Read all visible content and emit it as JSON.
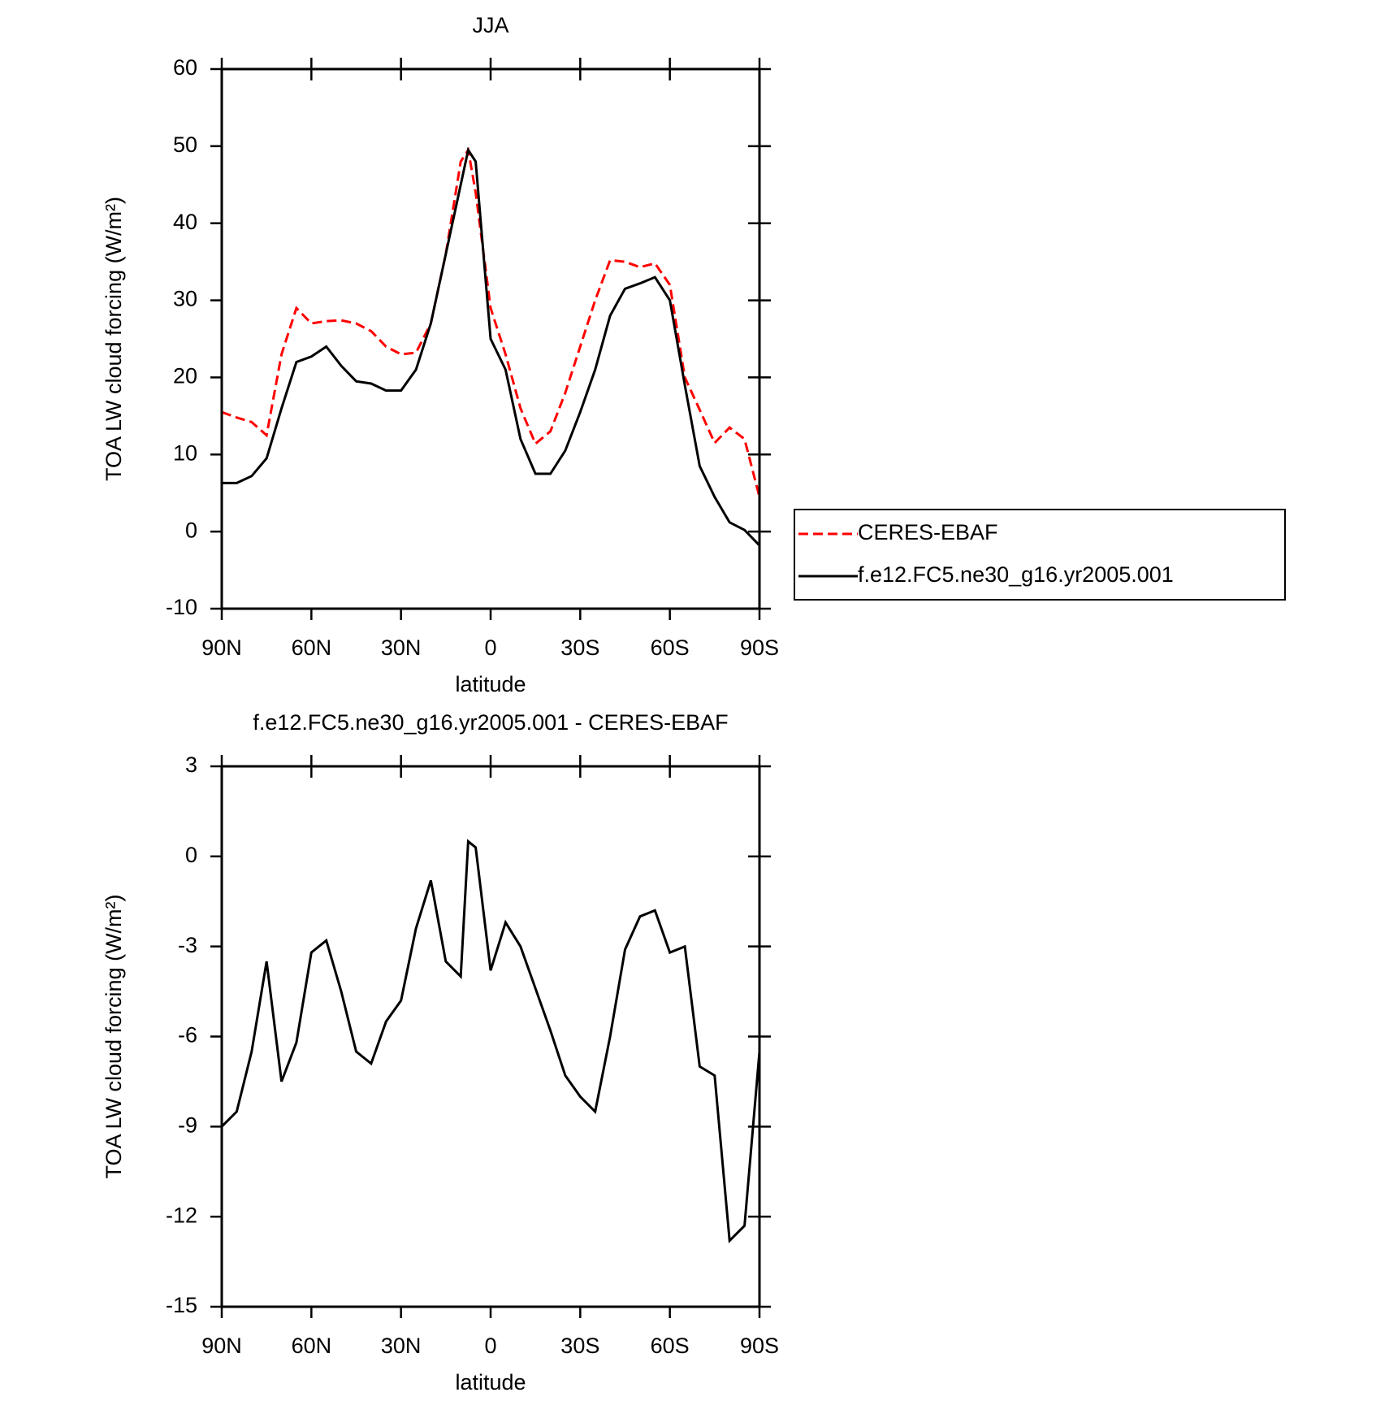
{
  "chart_data": [
    {
      "type": "line",
      "title": "JJA",
      "xlabel": "latitude",
      "ylabel": "TOA LW cloud forcing (W/m²)",
      "x": [
        90,
        85,
        80,
        75,
        70,
        65,
        60,
        55,
        50,
        45,
        40,
        35,
        30,
        25,
        20,
        15,
        10,
        7.5,
        5,
        0,
        -5,
        -10,
        -15,
        -20,
        -25,
        -30,
        -35,
        -40,
        -45,
        -50,
        -55,
        -60,
        -65,
        -70,
        -75,
        -80,
        -85,
        -90
      ],
      "series": [
        {
          "name": "CERES-EBAF",
          "color": "#ff0000",
          "linestyle": "dashed",
          "values": [
            15.5,
            14.8,
            14.2,
            12.5,
            23,
            29,
            27,
            27.3,
            27.4,
            27,
            26,
            24,
            23,
            23.2,
            27,
            36,
            48,
            49.5,
            44,
            29,
            23,
            16,
            11.4,
            13,
            18,
            24,
            30,
            35.2,
            35,
            34.3,
            34.8,
            32,
            20,
            15.8,
            11.5,
            13.5,
            12,
            4.5
          ]
        },
        {
          "name": "f.e12.FC5.ne30_g16.yr2005.001",
          "color": "#000000",
          "linestyle": "solid",
          "values": [
            6.3,
            6.3,
            7.2,
            9.5,
            16,
            22,
            22.7,
            24,
            21.5,
            19.5,
            19.2,
            18.3,
            18.3,
            21,
            27,
            36,
            45,
            49.5,
            48,
            25,
            21,
            12,
            7.5,
            7.5,
            10.5,
            15.5,
            21,
            28,
            31.5,
            32.2,
            33,
            30,
            19,
            8.5,
            4.5,
            1.2,
            0.2,
            -1.8
          ]
        }
      ],
      "xlim": [
        90,
        -90
      ],
      "xticks": [
        {
          "value": 90,
          "label": "90N"
        },
        {
          "value": 60,
          "label": "60N"
        },
        {
          "value": 30,
          "label": "30N"
        },
        0,
        {
          "value": -30,
          "label": "30S"
        },
        {
          "value": -60,
          "label": "60S"
        },
        {
          "value": -90,
          "label": "90S"
        }
      ],
      "ylim": [
        -10,
        60
      ],
      "yticks": [
        -10,
        0,
        10,
        20,
        30,
        40,
        50,
        60
      ],
      "legend": "right"
    },
    {
      "type": "line",
      "title": "f.e12.FC5.ne30_g16.yr2005.001 - CERES-EBAF",
      "xlabel": "latitude",
      "ylabel": "TOA LW cloud forcing (W/m²)",
      "x": [
        90,
        85,
        80,
        75,
        70,
        65,
        60,
        55,
        50,
        45,
        40,
        35,
        30,
        25,
        20,
        15,
        10,
        7.5,
        5,
        0,
        -5,
        -10,
        -15,
        -20,
        -25,
        -30,
        -35,
        -40,
        -45,
        -50,
        -55,
        -60,
        -65,
        -70,
        -75,
        -80,
        -85,
        -90
      ],
      "series": [
        {
          "color": "#000000",
          "linestyle": "solid",
          "values": [
            -9.0,
            -8.5,
            -6.5,
            -3.5,
            -7.5,
            -6.2,
            -3.2,
            -2.8,
            -4.5,
            -6.5,
            -6.9,
            -5.5,
            -4.8,
            -2.4,
            -0.8,
            -3.5,
            -4.0,
            0.5,
            0.3,
            -3.8,
            -2.2,
            -3.0,
            -4.4,
            -5.8,
            -7.3,
            -8.0,
            -8.5,
            -6.0,
            -3.1,
            -2.0,
            -1.8,
            -3.2,
            -3.0,
            -7.0,
            -7.3,
            -12.8,
            -12.3,
            -6.5
          ]
        }
      ],
      "xlim": [
        90,
        -90
      ],
      "xticks": [
        {
          "value": 90,
          "label": "90N"
        },
        {
          "value": 60,
          "label": "60N"
        },
        {
          "value": 30,
          "label": "30N"
        },
        0,
        {
          "value": -30,
          "label": "30S"
        },
        {
          "value": -60,
          "label": "60S"
        },
        {
          "value": -90,
          "label": "90S"
        }
      ],
      "ylim": [
        -15,
        3
      ],
      "yticks": [
        -15,
        -12,
        -9,
        -6,
        -3,
        0,
        3
      ]
    }
  ]
}
